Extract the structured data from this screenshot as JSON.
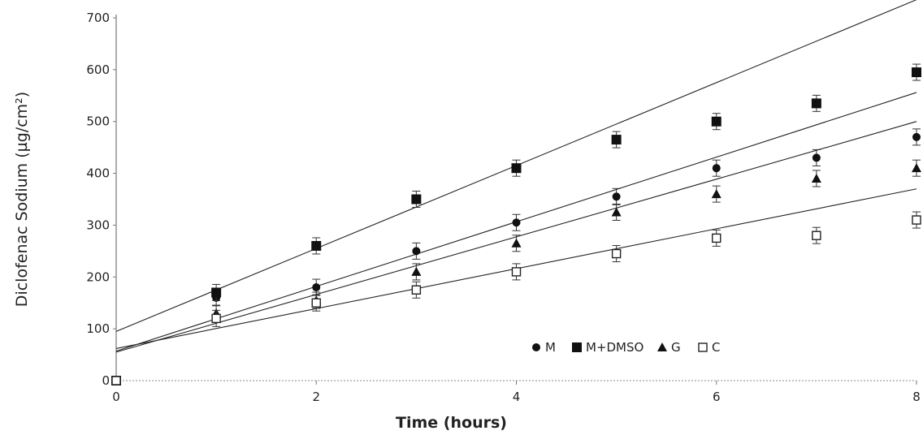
{
  "chart_data": {
    "type": "scatter",
    "xlabel": "Time (hours)",
    "ylabel": "Diclofenac Sodium (µg/cm²)",
    "xlim": [
      0,
      8
    ],
    "ylim": [
      0,
      700
    ],
    "xticks": [
      0,
      2,
      4,
      6,
      8
    ],
    "yticks": [
      0,
      100,
      200,
      300,
      400,
      500,
      600,
      700
    ],
    "xtick_labels": [
      "0",
      "2",
      "4",
      "6",
      "8"
    ],
    "ytick_labels": [
      "0",
      "100",
      "200",
      "300",
      "400",
      "500",
      "600",
      "700"
    ],
    "grid": false,
    "legend_position": "lower-right",
    "series": [
      {
        "name": "M",
        "marker": "circle",
        "x": [
          0,
          1,
          2,
          3,
          4,
          5,
          6,
          7,
          8
        ],
        "y": [
          0,
          160,
          180,
          250,
          305,
          355,
          410,
          430,
          470
        ],
        "fit": [
          57,
          556
        ]
      },
      {
        "name": "M+DMSO",
        "marker": "square",
        "x": [
          0,
          1,
          2,
          3,
          4,
          5,
          6,
          7,
          8
        ],
        "y": [
          0,
          170,
          260,
          350,
          410,
          465,
          500,
          535,
          595
        ],
        "fit": [
          95,
          735
        ]
      },
      {
        "name": "G",
        "marker": "triangle",
        "x": [
          0,
          1,
          2,
          3,
          4,
          5,
          6,
          7,
          8
        ],
        "y": [
          0,
          130,
          155,
          210,
          265,
          325,
          360,
          390,
          410
        ],
        "fit": [
          55,
          500
        ]
      },
      {
        "name": "C",
        "marker": "open-square",
        "x": [
          0,
          1,
          2,
          3,
          4,
          5,
          6,
          7,
          8
        ],
        "y": [
          0,
          120,
          150,
          175,
          210,
          245,
          275,
          280,
          310
        ],
        "fit": [
          62,
          370
        ]
      }
    ]
  }
}
